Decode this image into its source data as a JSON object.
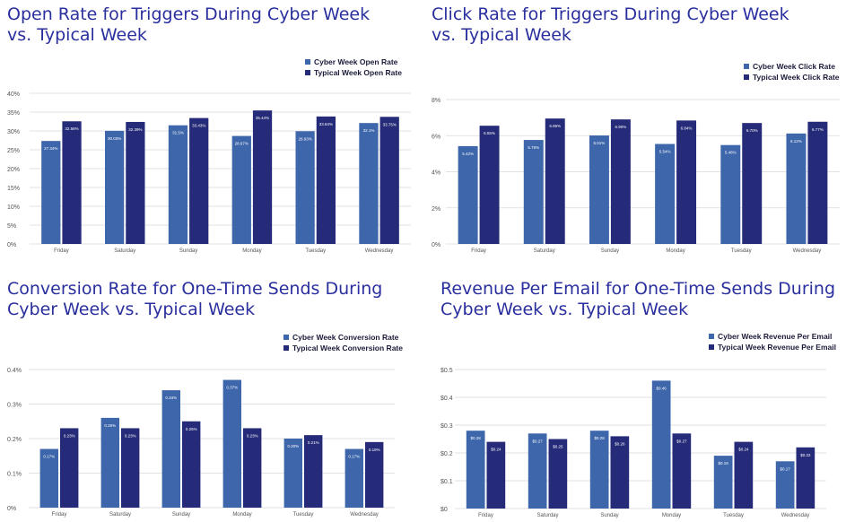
{
  "colors": {
    "cyber": "#3d66ab",
    "typical": "#252b78",
    "title": "#2a2f9e",
    "grid": "#d9d9d9",
    "axis_text": "#555555"
  },
  "chart_data": [
    {
      "type": "bar",
      "title": "Open Rate for Triggers During Cyber Week\nvs. Typical Week",
      "categories": [
        "Friday",
        "Saturday",
        "Sunday",
        "Monday",
        "Tuesday",
        "Wednesday"
      ],
      "series": [
        {
          "name": "Cyber Week Open Rate",
          "values": [
            27.34,
            30.03,
            31.5,
            28.67,
            29.93,
            32.1
          ],
          "labels": [
            "27.34%",
            "30.03%",
            "31.5%",
            "28.67%",
            "29.93%",
            "32.1%"
          ]
        },
        {
          "name": "Typical Week Open Rate",
          "values": [
            32.56,
            32.39,
            33.43,
            35.44,
            33.84,
            33.75
          ],
          "labels": [
            "32.56%",
            "32.39%",
            "33.43%",
            "35.44%",
            "33.84%",
            "33.75%"
          ]
        }
      ],
      "yticks": [
        "0%",
        "5%",
        "10%",
        "15%",
        "20%",
        "25%",
        "30%",
        "35%",
        "40%"
      ],
      "ylim": [
        0,
        40
      ]
    },
    {
      "type": "bar",
      "title": "Click Rate for Triggers During Cyber Week\nvs. Typical Week",
      "categories": [
        "Friday",
        "Saturday",
        "Sunday",
        "Monday",
        "Tuesday",
        "Wednesday"
      ],
      "series": [
        {
          "name": "Cyber Week Click Rate",
          "values": [
            5.42,
            5.76,
            6.01,
            5.54,
            5.48,
            6.12
          ],
          "labels": [
            "5.42%",
            "5.76%",
            "6.01%",
            "5.54%",
            "5.48%",
            "6.12%"
          ]
        },
        {
          "name": "Typical Week Click Rate",
          "values": [
            6.55,
            6.95,
            6.9,
            6.84,
            6.7,
            6.77
          ],
          "labels": [
            "6.55%",
            "6.95%",
            "6.90%",
            "6.84%",
            "6.70%",
            "6.77%"
          ]
        }
      ],
      "yticks": [
        "0%",
        "2%",
        "4%",
        "6%",
        "8%"
      ],
      "ylim": [
        0,
        8
      ]
    },
    {
      "type": "bar",
      "title": "Conversion Rate for One-Time Sends During\nCyber Week vs. Typical Week",
      "categories": [
        "Friday",
        "Saturday",
        "Sunday",
        "Monday",
        "Tuesday",
        "Wednesday"
      ],
      "series": [
        {
          "name": "Cyber Week Conversion Rate",
          "values": [
            0.17,
            0.26,
            0.34,
            0.37,
            0.2,
            0.17
          ],
          "labels": [
            "0.17%",
            "0.26%",
            "0.34%",
            "0.37%",
            "0.20%",
            "0.17%"
          ]
        },
        {
          "name": "Typical Week Conversion Rate",
          "values": [
            0.23,
            0.23,
            0.25,
            0.23,
            0.21,
            0.19
          ],
          "labels": [
            "0.23%",
            "0.23%",
            "0.25%",
            "0.23%",
            "0.21%",
            "0.19%"
          ]
        }
      ],
      "yticks": [
        "0%",
        "0.1%",
        "0.2%",
        "0.3%",
        "0.4%"
      ],
      "ylim": [
        0,
        0.4
      ]
    },
    {
      "type": "bar",
      "title": "Revenue Per Email for One-Time Sends During\nCyber Week vs. Typical Week",
      "categories": [
        "Friday",
        "Saturday",
        "Sunday",
        "Monday",
        "Tuesday",
        "Wednesday"
      ],
      "series": [
        {
          "name": "Cyber Week Revenue Per Email",
          "values": [
            0.28,
            0.27,
            0.28,
            0.46,
            0.19,
            0.17
          ],
          "labels": [
            "$0.28",
            "$0.27",
            "$0.28",
            "$0.46",
            "$0.19",
            "$0.17"
          ]
        },
        {
          "name": "Typical Week Revenue Per Email",
          "values": [
            0.24,
            0.25,
            0.26,
            0.27,
            0.24,
            0.22
          ],
          "labels": [
            "$0.24",
            "$0.25",
            "$0.26",
            "$0.27",
            "$0.24",
            "$0.22"
          ]
        }
      ],
      "yticks": [
        "$0",
        "$0.1",
        "$0.2",
        "$0.3",
        "$0.4",
        "$0.5"
      ],
      "ylim": [
        0,
        0.5
      ]
    }
  ]
}
